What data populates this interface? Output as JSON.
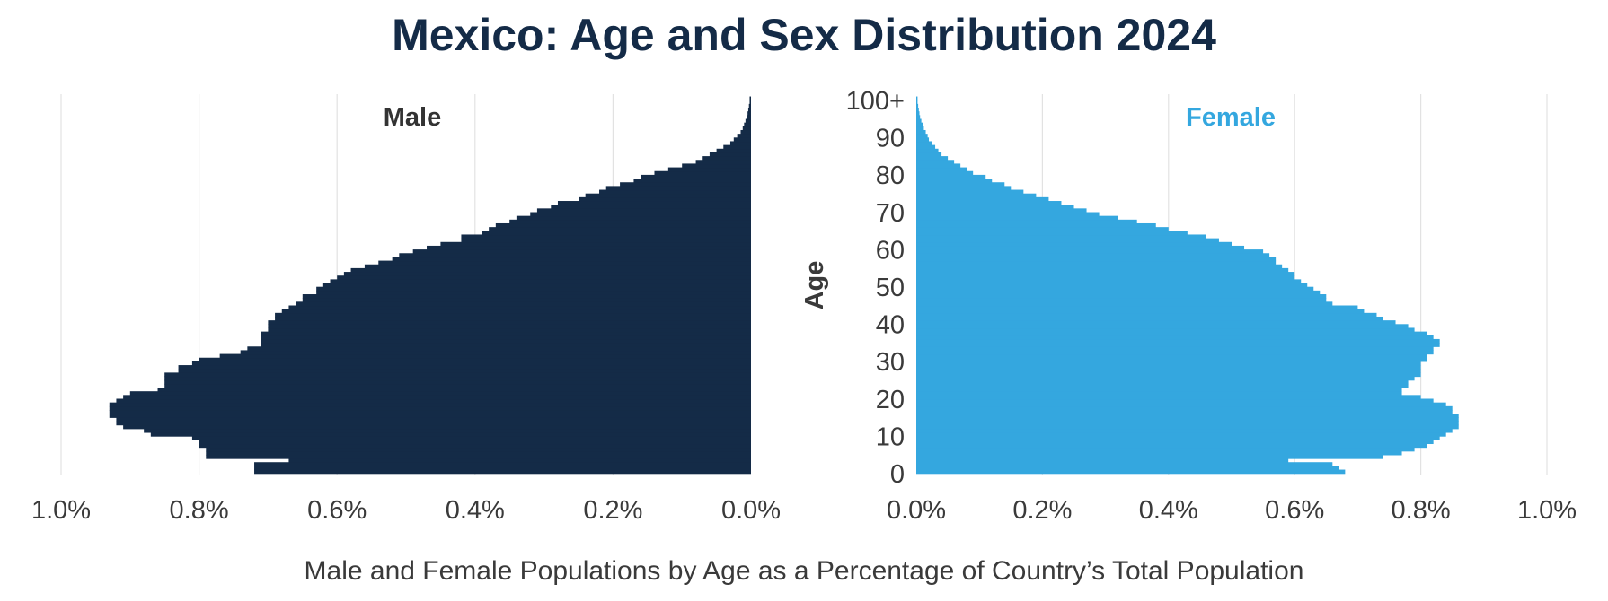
{
  "title": "Mexico: Age and Sex Distribution 2024",
  "caption": "Male and Female Populations by Age as a Percentage of Country’s Total Population",
  "colors": {
    "male": "#142b47",
    "female": "#34a7df",
    "grid": "#e2e2e2",
    "text": "#3a3a3a"
  },
  "chart_data": {
    "type": "bar",
    "orientation": "horizontal-population-pyramid",
    "ylabel": "Age",
    "age_ticks": [
      "0",
      "10",
      "20",
      "30",
      "40",
      "50",
      "60",
      "70",
      "80",
      "90",
      "100+"
    ],
    "male_axis": {
      "ticks": [
        "1.0%",
        "0.8%",
        "0.6%",
        "0.4%",
        "0.2%",
        "0.0%"
      ],
      "xlim": [
        0,
        1.0
      ]
    },
    "female_axis": {
      "ticks": [
        "0.0%",
        "0.2%",
        "0.4%",
        "0.6%",
        "0.8%",
        "1.0%"
      ],
      "xlim": [
        0,
        1.0
      ]
    },
    "age_range": [
      0,
      100
    ],
    "series": [
      {
        "name": "Male",
        "values": [
          0.72,
          0.72,
          0.72,
          0.67,
          0.79,
          0.79,
          0.79,
          0.8,
          0.8,
          0.81,
          0.87,
          0.88,
          0.91,
          0.92,
          0.92,
          0.93,
          0.93,
          0.93,
          0.93,
          0.92,
          0.91,
          0.9,
          0.86,
          0.85,
          0.85,
          0.85,
          0.85,
          0.83,
          0.83,
          0.81,
          0.8,
          0.77,
          0.74,
          0.73,
          0.71,
          0.71,
          0.71,
          0.71,
          0.7,
          0.7,
          0.7,
          0.69,
          0.69,
          0.68,
          0.67,
          0.66,
          0.65,
          0.65,
          0.63,
          0.63,
          0.62,
          0.61,
          0.6,
          0.59,
          0.58,
          0.56,
          0.54,
          0.52,
          0.51,
          0.49,
          0.47,
          0.45,
          0.42,
          0.42,
          0.39,
          0.38,
          0.37,
          0.35,
          0.34,
          0.32,
          0.31,
          0.29,
          0.28,
          0.25,
          0.24,
          0.22,
          0.21,
          0.19,
          0.17,
          0.16,
          0.14,
          0.12,
          0.1,
          0.08,
          0.07,
          0.06,
          0.05,
          0.04,
          0.03,
          0.025,
          0.02,
          0.015,
          0.012,
          0.01,
          0.008,
          0.006,
          0.005,
          0.004,
          0.003,
          0.002,
          0.002
        ]
      },
      {
        "name": "Female",
        "values": [
          0.68,
          0.67,
          0.66,
          0.59,
          0.74,
          0.77,
          0.79,
          0.81,
          0.82,
          0.83,
          0.84,
          0.85,
          0.86,
          0.86,
          0.86,
          0.86,
          0.85,
          0.85,
          0.84,
          0.82,
          0.8,
          0.77,
          0.77,
          0.78,
          0.78,
          0.79,
          0.8,
          0.8,
          0.8,
          0.8,
          0.81,
          0.81,
          0.82,
          0.82,
          0.83,
          0.83,
          0.82,
          0.81,
          0.79,
          0.78,
          0.76,
          0.74,
          0.73,
          0.71,
          0.7,
          0.66,
          0.65,
          0.65,
          0.64,
          0.63,
          0.62,
          0.61,
          0.6,
          0.6,
          0.59,
          0.58,
          0.57,
          0.57,
          0.56,
          0.55,
          0.52,
          0.5,
          0.48,
          0.46,
          0.43,
          0.4,
          0.38,
          0.35,
          0.32,
          0.29,
          0.27,
          0.25,
          0.23,
          0.21,
          0.19,
          0.17,
          0.15,
          0.14,
          0.12,
          0.11,
          0.09,
          0.08,
          0.07,
          0.06,
          0.05,
          0.04,
          0.035,
          0.03,
          0.025,
          0.02,
          0.018,
          0.015,
          0.012,
          0.01,
          0.008,
          0.006,
          0.005,
          0.004,
          0.003,
          0.002,
          0.002
        ]
      }
    ],
    "grid": true,
    "legend": "series names printed inside each plot at top"
  }
}
